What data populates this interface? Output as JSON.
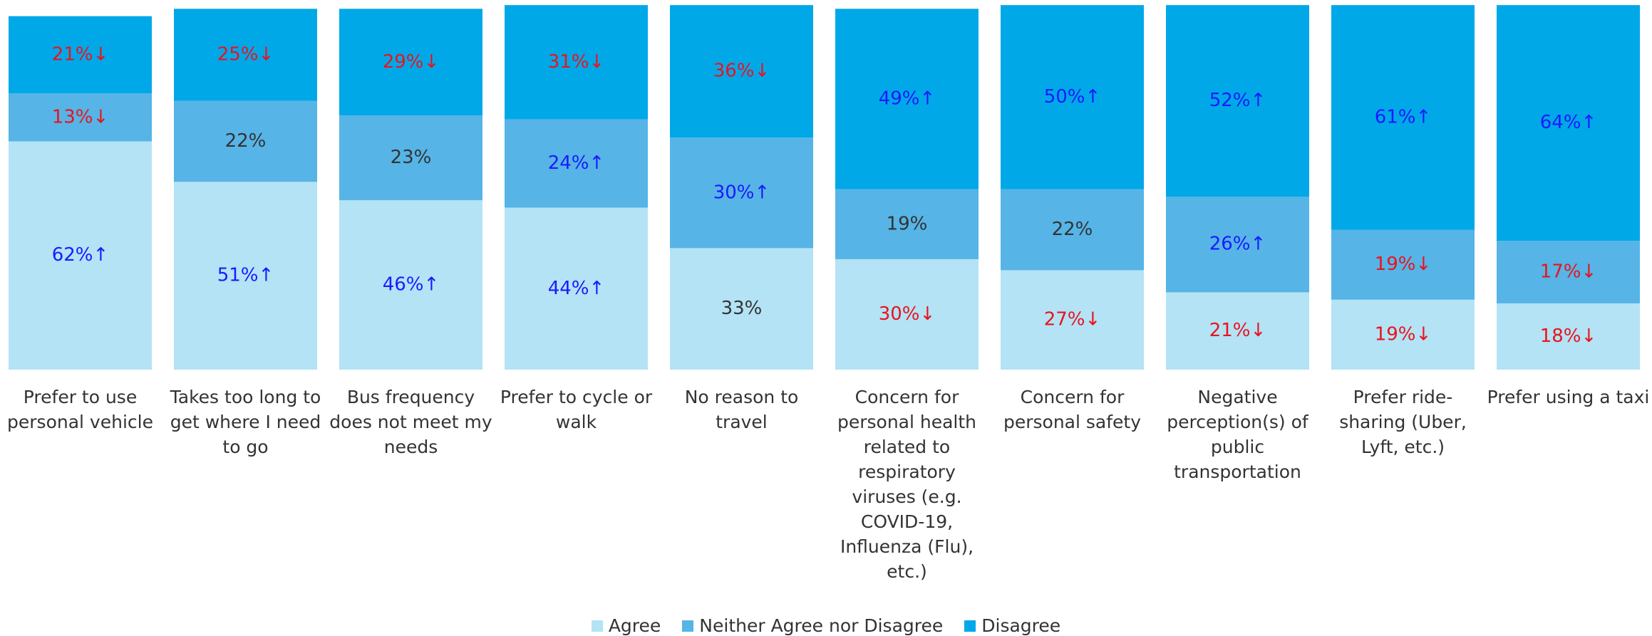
{
  "chart_data": {
    "type": "bar",
    "stacked": true,
    "categories": [
      "Prefer to use personal vehicle",
      "Takes too long to get where I need to go",
      "Bus frequency does not meet my needs",
      "Prefer to cycle or walk",
      "No reason to travel",
      "Concern for personal health related to respiratory viruses (e.g. COVID-19, Influenza (Flu), etc.)",
      "Concern for personal  safety",
      "Negative perception(s) of public transportation",
      "Prefer ride-sharing (Uber, Lyft, etc.)",
      "Prefer using a taxi"
    ],
    "ylim": [
      0,
      100
    ],
    "series": [
      {
        "name": "Agree",
        "color": "#b3e3f5",
        "values": [
          62,
          51,
          46,
          44,
          33,
          30,
          27,
          21,
          19,
          18
        ],
        "value_labels": [
          "62%↑",
          "51%↑",
          "46%↑",
          "44%↑",
          "33%",
          "30%↓",
          "27%↓",
          "21%↓",
          "19%↓",
          "18%↓"
        ]
      },
      {
        "name": "Neither Agree nor Disagree",
        "color": "#56b4e6",
        "values": [
          13,
          22,
          23,
          24,
          30,
          19,
          22,
          26,
          19,
          17
        ],
        "value_labels": [
          "13%↓",
          "22%",
          "23%",
          "24%↑",
          "30%↑",
          "19%",
          "22%",
          "26%↑",
          "19%↓",
          "17%↓"
        ]
      },
      {
        "name": "Disagree",
        "color": "#00a8e8",
        "values": [
          21,
          25,
          29,
          31,
          36,
          49,
          50,
          52,
          61,
          64
        ],
        "value_labels": [
          "21%↓",
          "25%↓",
          "29%↓",
          "31%↓",
          "36%↓",
          "49%↑",
          "50%↑",
          "52%↑",
          "61%↑",
          "64%↑"
        ]
      }
    ]
  }
}
